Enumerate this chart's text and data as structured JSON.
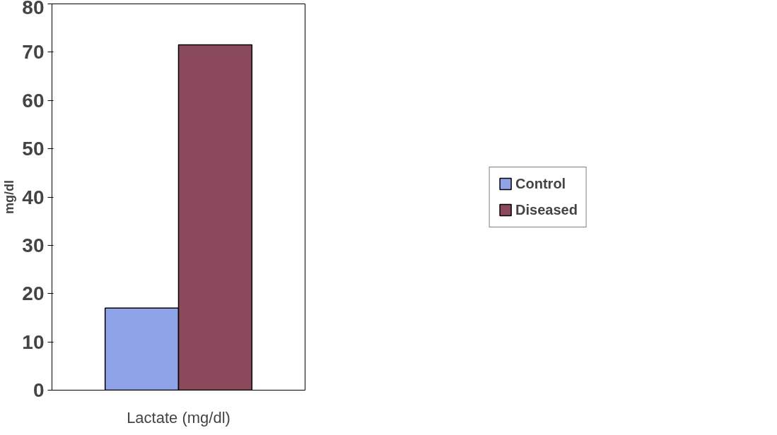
{
  "chart_data": {
    "type": "bar",
    "ylabel": "mg/dl",
    "categories": [
      "Lactate (mg/dl)"
    ],
    "series": [
      {
        "name": "Control",
        "color": "#8fa3e8",
        "values": [
          17
        ]
      },
      {
        "name": "Diseased",
        "color": "#8a4a5c",
        "values": [
          71.5
        ]
      }
    ],
    "ylim": [
      0,
      80
    ],
    "yticks": [
      0,
      10,
      20,
      30,
      40,
      50,
      60,
      70,
      80
    ],
    "grid": false,
    "legend": "right"
  }
}
